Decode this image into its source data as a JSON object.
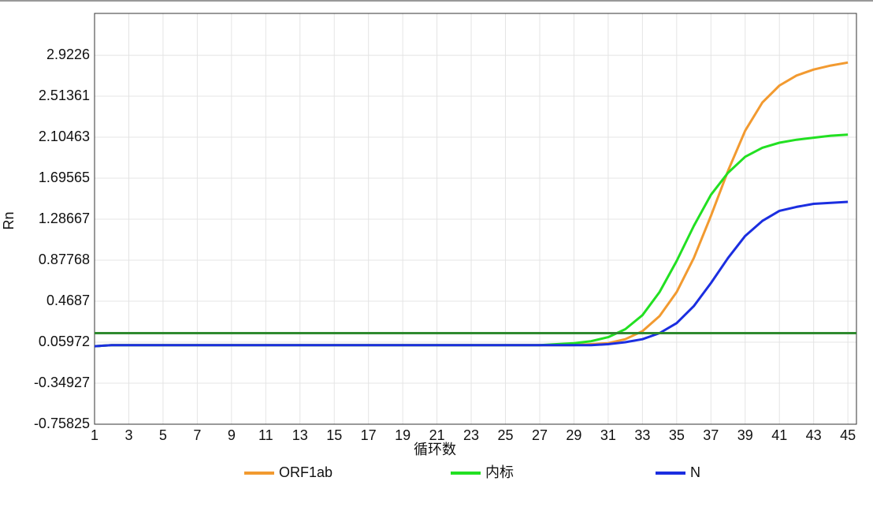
{
  "chart_data": {
    "type": "line",
    "y_label": "Rn",
    "x_label": "循环数",
    "x": [
      1,
      2,
      3,
      4,
      5,
      6,
      7,
      8,
      9,
      10,
      11,
      12,
      13,
      14,
      15,
      16,
      17,
      18,
      19,
      20,
      21,
      22,
      23,
      24,
      25,
      26,
      27,
      28,
      29,
      30,
      31,
      32,
      33,
      34,
      35,
      36,
      37,
      38,
      39,
      40,
      41,
      42,
      43,
      44,
      45
    ],
    "xlim": [
      1,
      45.5
    ],
    "xticks": [
      1,
      3,
      5,
      7,
      9,
      11,
      13,
      15,
      17,
      19,
      21,
      23,
      25,
      27,
      29,
      31,
      33,
      35,
      37,
      39,
      41,
      43,
      45
    ],
    "ylim": [
      -0.75825,
      3.34
    ],
    "yticks": [
      -0.75825,
      -0.34927,
      0.05972,
      0.4687,
      0.87768,
      1.28667,
      1.69565,
      2.10463,
      2.51361,
      2.9226
    ],
    "grid": true,
    "legend": "bottom",
    "threshold": {
      "value": 0.15,
      "color": "#2f8a2f"
    },
    "series": [
      {
        "name": "ORF1ab",
        "color": "#f29a30",
        "values": [
          0.02,
          0.03,
          0.03,
          0.03,
          0.03,
          0.03,
          0.03,
          0.03,
          0.03,
          0.03,
          0.03,
          0.03,
          0.03,
          0.03,
          0.03,
          0.03,
          0.03,
          0.03,
          0.03,
          0.03,
          0.03,
          0.03,
          0.03,
          0.03,
          0.03,
          0.03,
          0.03,
          0.03,
          0.03,
          0.04,
          0.05,
          0.09,
          0.17,
          0.32,
          0.56,
          0.9,
          1.32,
          1.77,
          2.17,
          2.45,
          2.62,
          2.72,
          2.78,
          2.82,
          2.85
        ]
      },
      {
        "name": "内标",
        "color": "#22e022",
        "values": [
          0.02,
          0.03,
          0.03,
          0.03,
          0.03,
          0.03,
          0.03,
          0.03,
          0.03,
          0.03,
          0.03,
          0.03,
          0.03,
          0.03,
          0.03,
          0.03,
          0.03,
          0.03,
          0.03,
          0.03,
          0.03,
          0.03,
          0.03,
          0.03,
          0.03,
          0.03,
          0.03,
          0.04,
          0.05,
          0.07,
          0.11,
          0.19,
          0.33,
          0.56,
          0.87,
          1.22,
          1.53,
          1.75,
          1.91,
          2.0,
          2.05,
          2.08,
          2.1,
          2.12,
          2.13
        ]
      },
      {
        "name": "N",
        "color": "#1b2ee0",
        "values": [
          0.02,
          0.03,
          0.03,
          0.03,
          0.03,
          0.03,
          0.03,
          0.03,
          0.03,
          0.03,
          0.03,
          0.03,
          0.03,
          0.03,
          0.03,
          0.03,
          0.03,
          0.03,
          0.03,
          0.03,
          0.03,
          0.03,
          0.03,
          0.03,
          0.03,
          0.03,
          0.03,
          0.03,
          0.03,
          0.03,
          0.04,
          0.06,
          0.09,
          0.15,
          0.25,
          0.42,
          0.65,
          0.9,
          1.12,
          1.27,
          1.37,
          1.41,
          1.44,
          1.45,
          1.46
        ]
      }
    ]
  }
}
